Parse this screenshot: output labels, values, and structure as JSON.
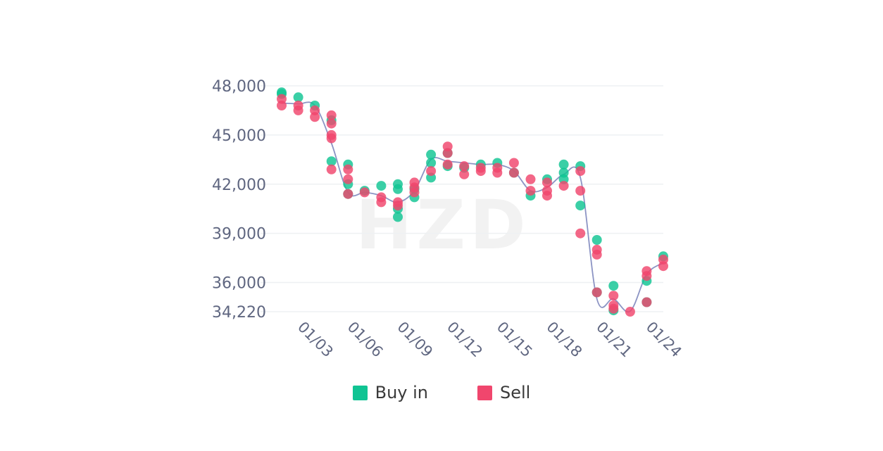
{
  "watermark": "HZD",
  "colors": {
    "buy": "#10c493",
    "sell": "#f0466d",
    "line": "#8c94c4",
    "grid": "#eef0f3",
    "axis_text": "#5f6680"
  },
  "legend": {
    "items": [
      {
        "label": "Buy in",
        "color": "#10c493"
      },
      {
        "label": "Sell",
        "color": "#f0466d"
      }
    ]
  },
  "chart_data": {
    "type": "scatter",
    "title": "",
    "xlabel": "",
    "ylabel": "",
    "ylim": [
      34220,
      48000
    ],
    "yticks": [
      34220,
      36000,
      39000,
      42000,
      45000,
      48000
    ],
    "ytick_labels": [
      "34,220",
      "36,000",
      "39,000",
      "42,000",
      "45,000",
      "48,000"
    ],
    "xlim": [
      "01/02",
      "01/25"
    ],
    "xticks": [
      "01/03",
      "01/06",
      "01/09",
      "01/12",
      "01/15",
      "01/18",
      "01/21",
      "01/24"
    ],
    "grid": true,
    "legend_position": "bottom",
    "trend_line": {
      "x": [
        "01/02",
        "01/03",
        "01/04",
        "01/05",
        "01/06",
        "01/07",
        "01/08",
        "01/09",
        "01/10",
        "01/11",
        "01/12",
        "01/13",
        "01/14",
        "01/15",
        "01/16",
        "01/17",
        "01/18",
        "01/19",
        "01/20",
        "01/21",
        "01/22",
        "01/23",
        "01/24",
        "01/25"
      ],
      "y": [
        46950,
        46900,
        46800,
        44500,
        41500,
        41500,
        41300,
        40900,
        41600,
        43500,
        43400,
        43300,
        43200,
        43200,
        42800,
        41600,
        41800,
        42600,
        42400,
        35000,
        35000,
        34250,
        36500,
        37200
      ]
    },
    "series": [
      {
        "name": "Buy in",
        "points": [
          {
            "x": "01/02",
            "y": 47600
          },
          {
            "x": "01/02",
            "y": 47500
          },
          {
            "x": "01/03",
            "y": 47300
          },
          {
            "x": "01/04",
            "y": 46800
          },
          {
            "x": "01/05",
            "y": 45900
          },
          {
            "x": "01/05",
            "y": 43400
          },
          {
            "x": "01/06",
            "y": 43200
          },
          {
            "x": "01/06",
            "y": 42000
          },
          {
            "x": "01/06",
            "y": 41400
          },
          {
            "x": "01/07",
            "y": 41600
          },
          {
            "x": "01/08",
            "y": 41900
          },
          {
            "x": "01/09",
            "y": 42000
          },
          {
            "x": "01/09",
            "y": 41700
          },
          {
            "x": "01/09",
            "y": 40500
          },
          {
            "x": "01/09",
            "y": 40000
          },
          {
            "x": "01/10",
            "y": 41700
          },
          {
            "x": "01/10",
            "y": 41200
          },
          {
            "x": "01/11",
            "y": 43800
          },
          {
            "x": "01/11",
            "y": 43300
          },
          {
            "x": "01/11",
            "y": 42400
          },
          {
            "x": "01/12",
            "y": 43900
          },
          {
            "x": "01/12",
            "y": 43100
          },
          {
            "x": "01/13",
            "y": 43000
          },
          {
            "x": "01/14",
            "y": 43200
          },
          {
            "x": "01/15",
            "y": 43300
          },
          {
            "x": "01/16",
            "y": 42700
          },
          {
            "x": "01/17",
            "y": 41300
          },
          {
            "x": "01/18",
            "y": 42300
          },
          {
            "x": "01/19",
            "y": 43200
          },
          {
            "x": "01/19",
            "y": 42700
          },
          {
            "x": "01/19",
            "y": 42300
          },
          {
            "x": "01/20",
            "y": 43100
          },
          {
            "x": "01/20",
            "y": 40700
          },
          {
            "x": "01/21",
            "y": 38600
          },
          {
            "x": "01/21",
            "y": 35400
          },
          {
            "x": "01/22",
            "y": 35800
          },
          {
            "x": "01/22",
            "y": 34300
          },
          {
            "x": "01/24",
            "y": 36100
          },
          {
            "x": "01/24",
            "y": 34800
          },
          {
            "x": "01/25",
            "y": 37600
          }
        ]
      },
      {
        "name": "Sell",
        "points": [
          {
            "x": "01/02",
            "y": 47200
          },
          {
            "x": "01/02",
            "y": 46800
          },
          {
            "x": "01/03",
            "y": 46800
          },
          {
            "x": "01/03",
            "y": 46500
          },
          {
            "x": "01/04",
            "y": 46500
          },
          {
            "x": "01/04",
            "y": 46100
          },
          {
            "x": "01/05",
            "y": 46200
          },
          {
            "x": "01/05",
            "y": 45700
          },
          {
            "x": "01/05",
            "y": 45000
          },
          {
            "x": "01/05",
            "y": 44800
          },
          {
            "x": "01/05",
            "y": 42900
          },
          {
            "x": "01/06",
            "y": 42900
          },
          {
            "x": "01/06",
            "y": 42300
          },
          {
            "x": "01/06",
            "y": 41400
          },
          {
            "x": "01/07",
            "y": 41500
          },
          {
            "x": "01/08",
            "y": 41200
          },
          {
            "x": "01/08",
            "y": 40900
          },
          {
            "x": "01/09",
            "y": 40900
          },
          {
            "x": "01/09",
            "y": 40700
          },
          {
            "x": "01/10",
            "y": 42100
          },
          {
            "x": "01/10",
            "y": 41800
          },
          {
            "x": "01/10",
            "y": 41500
          },
          {
            "x": "01/11",
            "y": 42800
          },
          {
            "x": "01/12",
            "y": 44300
          },
          {
            "x": "01/12",
            "y": 43900
          },
          {
            "x": "01/12",
            "y": 43200
          },
          {
            "x": "01/13",
            "y": 43100
          },
          {
            "x": "01/13",
            "y": 42600
          },
          {
            "x": "01/14",
            "y": 43000
          },
          {
            "x": "01/14",
            "y": 42800
          },
          {
            "x": "01/15",
            "y": 43000
          },
          {
            "x": "01/15",
            "y": 42700
          },
          {
            "x": "01/16",
            "y": 43300
          },
          {
            "x": "01/16",
            "y": 42700
          },
          {
            "x": "01/17",
            "y": 42300
          },
          {
            "x": "01/17",
            "y": 41600
          },
          {
            "x": "01/18",
            "y": 42100
          },
          {
            "x": "01/18",
            "y": 41600
          },
          {
            "x": "01/18",
            "y": 41300
          },
          {
            "x": "01/19",
            "y": 41900
          },
          {
            "x": "01/20",
            "y": 42800
          },
          {
            "x": "01/20",
            "y": 41600
          },
          {
            "x": "01/20",
            "y": 39000
          },
          {
            "x": "01/21",
            "y": 38000
          },
          {
            "x": "01/21",
            "y": 37700
          },
          {
            "x": "01/21",
            "y": 35400
          },
          {
            "x": "01/22",
            "y": 35200
          },
          {
            "x": "01/22",
            "y": 34600
          },
          {
            "x": "01/22",
            "y": 34400
          },
          {
            "x": "01/23",
            "y": 34220
          },
          {
            "x": "01/24",
            "y": 36700
          },
          {
            "x": "01/24",
            "y": 36400
          },
          {
            "x": "01/24",
            "y": 34800
          },
          {
            "x": "01/25",
            "y": 37400
          },
          {
            "x": "01/25",
            "y": 37000
          }
        ]
      }
    ]
  }
}
